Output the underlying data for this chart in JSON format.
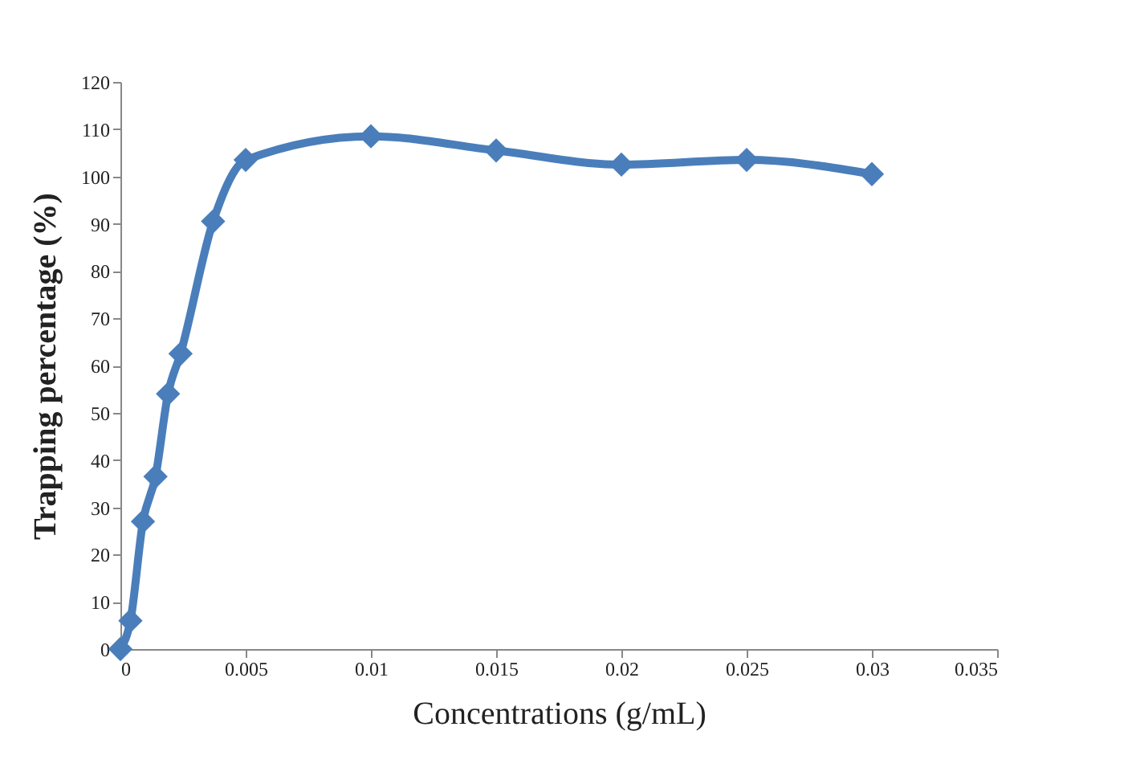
{
  "chart_data": {
    "type": "line",
    "xlabel": "Concentrations  (g/mL)",
    "ylabel": "Trapping percentage  (%)",
    "x": [
      0,
      0.0004,
      0.0009,
      0.0014,
      0.0019,
      0.0024,
      0.0037,
      0.005,
      0.01,
      0.015,
      0.02,
      0.025,
      0.03
    ],
    "series": [
      {
        "color": "#4a7ebb",
        "values": [
          0,
          6,
          27,
          36.5,
          54,
          62.5,
          90.5,
          103.5,
          108.5,
          105.5,
          102.5,
          103.5,
          100.5
        ]
      }
    ],
    "xlim": [
      0,
      0.035
    ],
    "xticks": [
      0,
      0.005,
      0.01,
      0.015,
      0.02,
      0.025,
      0.03,
      0.035
    ],
    "ylim": [
      0,
      120
    ],
    "yticks": [
      0,
      10,
      20,
      30,
      40,
      50,
      60,
      70,
      80,
      90,
      100,
      110,
      120
    ],
    "grid": false,
    "legend": false,
    "marker": "diamond",
    "line_style": "solid"
  }
}
